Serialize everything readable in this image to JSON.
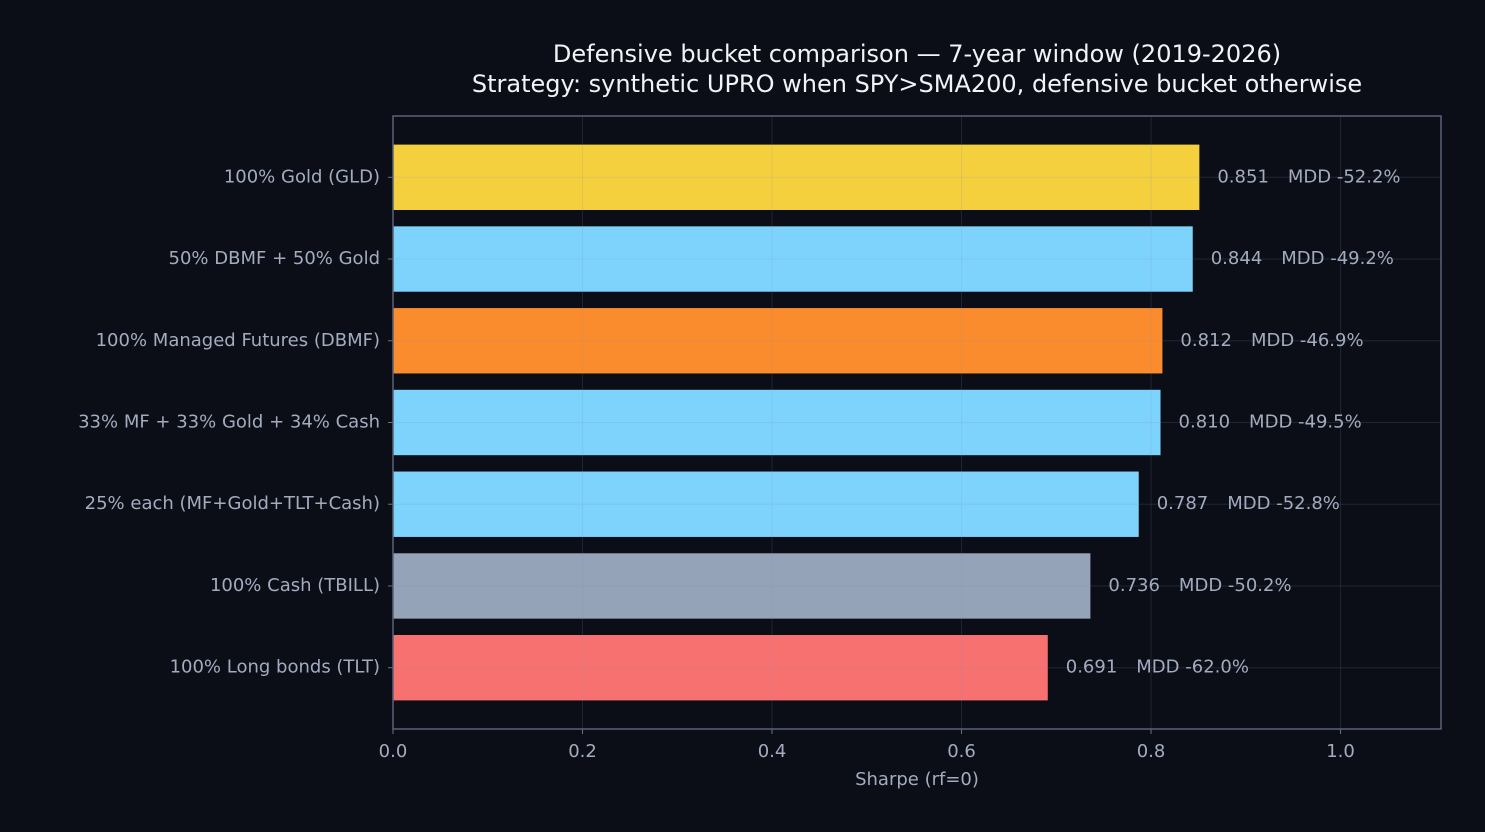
{
  "chart_data": {
    "type": "barh",
    "title": "Defensive bucket comparison — 7-year window (2019-2026)",
    "subtitle": "Strategy: synthetic UPRO when SPY>SMA200, defensive bucket otherwise",
    "x_label": "Sharpe (rf=0)",
    "categories": [
      "100% Gold (GLD)",
      "50% DBMF + 50% Gold",
      "100% Managed Futures (DBMF)",
      "33% MF + 33% Gold + 34% Cash",
      "25% each (MF+Gold+TLT+Cash)",
      "100% Cash (TBILL)",
      "100% Long bonds (TLT)"
    ],
    "values": [
      0.851,
      0.844,
      0.812,
      0.81,
      0.787,
      0.736,
      0.691
    ],
    "value_labels": [
      "0.851",
      "0.844",
      "0.812",
      "0.810",
      "0.787",
      "0.736",
      "0.691"
    ],
    "mdd_labels": [
      "MDD -52.2%",
      "MDD -49.2%",
      "MDD -46.9%",
      "MDD -49.5%",
      "MDD -52.8%",
      "MDD -50.2%",
      "MDD -62.0%"
    ],
    "colors": [
      "#f4d03f",
      "#7dd3fc",
      "#fb8c2e",
      "#7dd3fc",
      "#7dd3fc",
      "#94a3b8",
      "#f87171"
    ],
    "xlim": [
      0,
      1.106
    ],
    "xticks": [
      {
        "value": 0,
        "label": "0.0"
      },
      {
        "value": 0.2,
        "label": "0.2"
      },
      {
        "value": 0.4,
        "label": "0.4"
      },
      {
        "value": 0.6,
        "label": "0.6"
      },
      {
        "value": 0.8,
        "label": "0.8"
      },
      {
        "value": 1,
        "label": "1.0"
      }
    ],
    "grid": true
  }
}
